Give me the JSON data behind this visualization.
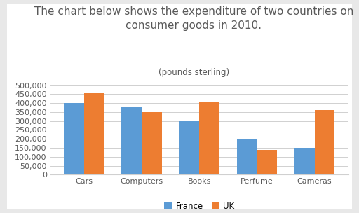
{
  "title": "The chart below shows the expenditure of two countries on\nconsumer goods in 2010.",
  "subtitle": "(pounds sterling)",
  "categories": [
    "Cars",
    "Computers",
    "Books",
    "Perfume",
    "Cameras"
  ],
  "france_values": [
    400000,
    380000,
    300000,
    200000,
    150000
  ],
  "uk_values": [
    455000,
    350000,
    410000,
    140000,
    360000
  ],
  "france_color": "#5b9bd5",
  "uk_color": "#ed7d31",
  "ylim": [
    0,
    500000
  ],
  "yticks": [
    0,
    50000,
    100000,
    150000,
    200000,
    250000,
    300000,
    350000,
    400000,
    450000,
    500000
  ],
  "legend_labels": [
    "France",
    "UK"
  ],
  "outer_bg_color": "#e8e8e8",
  "inner_bg_color": "#ffffff",
  "grid_color": "#d0d0d0",
  "title_fontsize": 11,
  "subtitle_fontsize": 8.5,
  "tick_fontsize": 8,
  "legend_fontsize": 8.5,
  "title_color": "#595959",
  "tick_color": "#595959"
}
